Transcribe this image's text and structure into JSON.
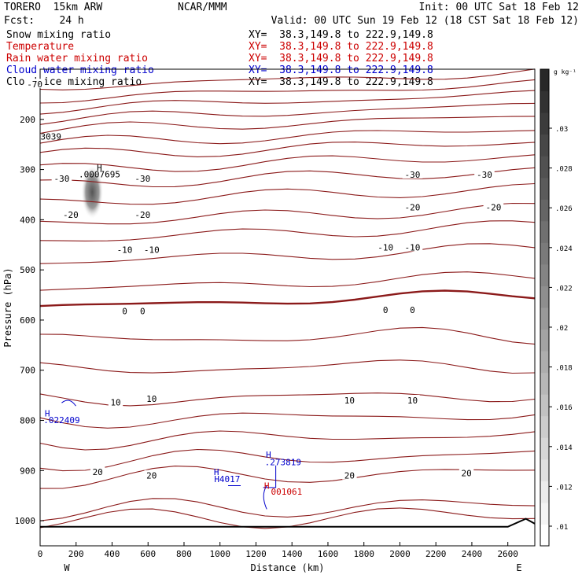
{
  "header": {
    "model": "TORERO  15km ARW",
    "org": "NCAR/MMM",
    "init": "Init: 00 UTC Sat 18 Feb 12",
    "fcst": "Fcst:    24 h",
    "valid": "Valid: 00 UTC Sun 19 Feb 12 (18 CST Sat 18 Feb 12)"
  },
  "fields": [
    {
      "name": "Snow mixing ratio",
      "xy": "XY=  38.3,149.8 to 222.9,149.8",
      "color": "#000000",
      "xy_color": "#000000"
    },
    {
      "name": "Temperature",
      "xy": "XY=  38.3,149.8 to 222.9,149.8",
      "color": "#cc0000",
      "xy_color": "#cc0000"
    },
    {
      "name": "Rain water mixing ratio",
      "xy": "XY=  38.3,149.8 to 222.9,149.8",
      "color": "#cc0000",
      "xy_color": "#cc0000"
    },
    {
      "name": "Cloud water mixing ratio",
      "xy": "XY=  38.3,149.8 to 222.9,149.8",
      "color": "#0000cc",
      "xy_color": "#0000cc"
    },
    {
      "name": "Cloud ice mixing ratio",
      "xy": "XY=  38.3,149.8 to 222.9,149.8",
      "color": "#000000",
      "xy_color": "#000000"
    }
  ],
  "colorbar": {
    "unit": "g kg⁻¹",
    "ticks": [
      ".01",
      ".012",
      ".014",
      ".016",
      ".018",
      ".02",
      ".022",
      ".024",
      ".026",
      ".028",
      ".03"
    ]
  },
  "chart_data": {
    "type": "contour",
    "xlabel": "Distance (km)",
    "ylabel": "Pressure (hPa)",
    "xlim": [
      0,
      2750
    ],
    "ylim": [
      1050,
      100
    ],
    "x_ticks": [
      0,
      200,
      400,
      600,
      800,
      1000,
      1200,
      1400,
      1600,
      1800,
      2000,
      2200,
      2400,
      2600
    ],
    "y_ticks": [
      200,
      300,
      400,
      500,
      600,
      700,
      800,
      900,
      1000
    ],
    "x_end_labels": {
      "left": "W",
      "right": "E"
    },
    "temperature_labels": [
      {
        "text": "-70",
        "x": -30,
        "p": 130
      },
      {
        "text": "-30",
        "x": 120,
        "p": 318
      },
      {
        "text": "-30",
        "x": 570,
        "p": 318
      },
      {
        "text": "-30",
        "x": 2070,
        "p": 310
      },
      {
        "text": "-30",
        "x": 2470,
        "p": 310
      },
      {
        "text": "-20",
        "x": 170,
        "p": 390
      },
      {
        "text": "-20",
        "x": 570,
        "p": 390
      },
      {
        "text": "-20",
        "x": 2070,
        "p": 375
      },
      {
        "text": "-20",
        "x": 2520,
        "p": 375
      },
      {
        "text": "-10",
        "x": 470,
        "p": 460
      },
      {
        "text": "-10",
        "x": 620,
        "p": 460
      },
      {
        "text": "-10",
        "x": 1920,
        "p": 455
      },
      {
        "text": "-10",
        "x": 2070,
        "p": 455
      },
      {
        "text": "0",
        "x": 470,
        "p": 582
      },
      {
        "text": "0",
        "x": 570,
        "p": 582
      },
      {
        "text": "0",
        "x": 1920,
        "p": 580
      },
      {
        "text": "0",
        "x": 2070,
        "p": 580
      },
      {
        "text": "10",
        "x": 420,
        "p": 764
      },
      {
        "text": "10",
        "x": 620,
        "p": 757
      },
      {
        "text": "10",
        "x": 1720,
        "p": 760
      },
      {
        "text": "10",
        "x": 2070,
        "p": 760
      },
      {
        "text": "20",
        "x": 320,
        "p": 903
      },
      {
        "text": "20",
        "x": 620,
        "p": 910
      },
      {
        "text": "20",
        "x": 1720,
        "p": 910
      },
      {
        "text": "20",
        "x": 2370,
        "p": 905
      }
    ],
    "marks": [
      {
        "text": "H",
        "x": 330,
        "p": 296,
        "color": "#000000"
      },
      {
        "text": ".0007695",
        "x": 330,
        "p": 309,
        "color": "#000000"
      },
      {
        "text": "3039",
        "x": 60,
        "p": 234,
        "color": "#000000"
      },
      {
        "text": "H",
        "x": 40,
        "p": 786,
        "color": "#0000cc"
      },
      {
        "text": ".022409",
        "x": 120,
        "p": 799,
        "color": "#0000cc"
      },
      {
        "text": "H",
        "x": 980,
        "p": 903,
        "color": "#0000cc"
      },
      {
        "text": "H4017",
        "x": 1040,
        "p": 917,
        "color": "#0000cc"
      },
      {
        "text": "H",
        "x": 1270,
        "p": 868,
        "color": "#0000cc"
      },
      {
        "text": ".273819",
        "x": 1350,
        "p": 883,
        "color": "#0000cc"
      },
      {
        "text": "H",
        "x": 1260,
        "p": 930,
        "color": "#cc0000"
      },
      {
        "text": "001061",
        "x": 1370,
        "p": 942,
        "color": "#cc0000"
      }
    ]
  }
}
